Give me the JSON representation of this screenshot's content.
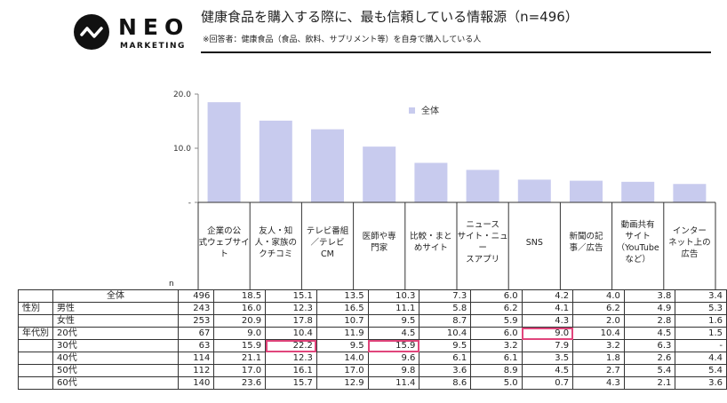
{
  "logo": {
    "wordmark": "NEO",
    "subword": "MARKETING"
  },
  "header": {
    "title": "健康食品を購入する際に、最も信頼している情報源（n=496）",
    "subtitle": "※回答者：健康食品（食品、飲料、サプリメント等）を自身で購入している人"
  },
  "chart_data": {
    "type": "bar",
    "categories": [
      "企業の公式ウェブサイト",
      "友人・知人・家族のクチコミ",
      "テレビ番組／テレビCM",
      "医師や専門家",
      "比較・まとめサイト",
      "ニュースサイト・ニュースアプリ",
      "SNS",
      "新聞の記事／広告",
      "動画共有サイト（YouTubeなど）",
      "インターネット上の広告"
    ],
    "category_lines": [
      [
        "企業の公",
        "式ウェブサイ",
        "ト"
      ],
      [
        "友人・知",
        "人・家族の",
        "クチコミ"
      ],
      [
        "テレビ番組",
        "／テレビ",
        "CM"
      ],
      [
        "医師や専",
        "門家"
      ],
      [
        "比較・まと",
        "めサイト"
      ],
      [
        "ニュース",
        "サイト・ニュー",
        "スアプリ"
      ],
      [
        "SNS"
      ],
      [
        "新聞の記",
        "事／広告"
      ],
      [
        "動画共有",
        "サイト",
        "（YouTube",
        "など）"
      ],
      [
        "インター",
        "ネット上の",
        "広告"
      ]
    ],
    "series": [
      {
        "name": "全体",
        "values": [
          18.5,
          15.1,
          13.5,
          10.3,
          7.3,
          6.0,
          4.2,
          4.0,
          3.8,
          3.4
        ]
      }
    ],
    "yticks": [
      "20.0",
      "10.0",
      "-"
    ],
    "ylim": [
      0,
      20
    ],
    "legend_position": "top-right",
    "bar_color": "#c8cbee"
  },
  "table": {
    "n_header": "n",
    "rows": [
      {
        "group": "",
        "label": "全体",
        "n": "496",
        "values": [
          "18.5",
          "15.1",
          "13.5",
          "10.3",
          "7.3",
          "6.0",
          "4.2",
          "4.0",
          "3.8",
          "3.4"
        ],
        "highlight": []
      },
      {
        "group": "性別",
        "label": "男性",
        "n": "243",
        "values": [
          "16.0",
          "12.3",
          "16.5",
          "11.1",
          "5.8",
          "6.2",
          "4.1",
          "6.2",
          "4.9",
          "5.3"
        ],
        "highlight": []
      },
      {
        "group": "",
        "label": "女性",
        "n": "253",
        "values": [
          "20.9",
          "17.8",
          "10.7",
          "9.5",
          "8.7",
          "5.9",
          "4.3",
          "2.0",
          "2.8",
          "1.6"
        ],
        "highlight": []
      },
      {
        "group": "年代別",
        "label": "20代",
        "n": "67",
        "values": [
          "9.0",
          "10.4",
          "11.9",
          "4.5",
          "10.4",
          "6.0",
          "9.0",
          "10.4",
          "4.5",
          "1.5"
        ],
        "highlight": [
          6
        ]
      },
      {
        "group": "",
        "label": "30代",
        "n": "63",
        "values": [
          "15.9",
          "22.2",
          "9.5",
          "15.9",
          "9.5",
          "3.2",
          "7.9",
          "3.2",
          "6.3",
          "-"
        ],
        "highlight": [
          1,
          3
        ]
      },
      {
        "group": "",
        "label": "40代",
        "n": "114",
        "values": [
          "21.1",
          "12.3",
          "14.0",
          "9.6",
          "6.1",
          "6.1",
          "3.5",
          "1.8",
          "2.6",
          "4.4"
        ],
        "highlight": []
      },
      {
        "group": "",
        "label": "50代",
        "n": "112",
        "values": [
          "17.0",
          "16.1",
          "17.0",
          "9.8",
          "3.6",
          "8.9",
          "4.5",
          "2.7",
          "5.4",
          "5.4"
        ],
        "highlight": []
      },
      {
        "group": "",
        "label": "60代",
        "n": "140",
        "values": [
          "23.6",
          "15.7",
          "12.9",
          "11.4",
          "8.6",
          "5.0",
          "0.7",
          "4.3",
          "2.1",
          "3.6"
        ],
        "highlight": []
      }
    ]
  }
}
